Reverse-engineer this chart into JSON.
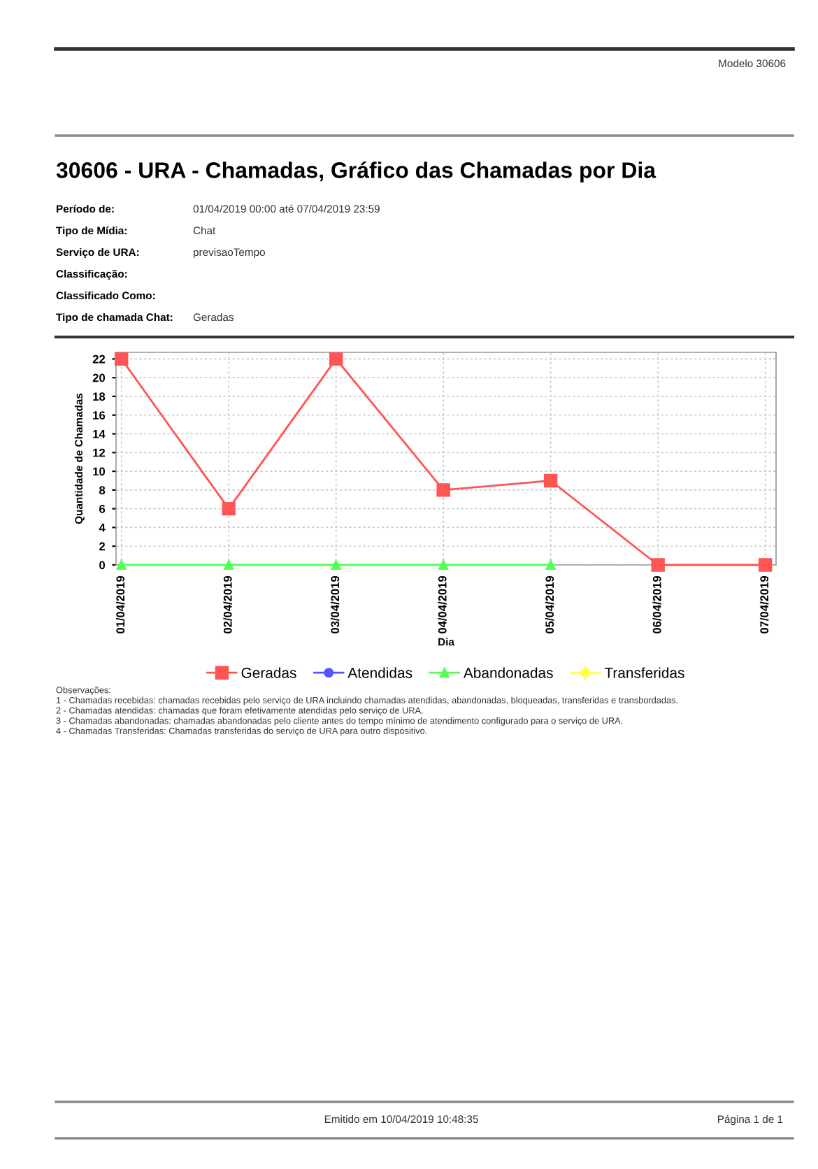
{
  "chart_data": {
    "type": "line",
    "title": "30606 - URA - Chamadas, Gráfico das Chamadas por Dia",
    "xlabel": "Dia",
    "ylabel": "Quantidade de Chamadas",
    "categories": [
      "01/04/2019",
      "02/04/2019",
      "03/04/2019",
      "04/04/2019",
      "05/04/2019",
      "06/04/2019",
      "07/04/2019"
    ],
    "series": [
      {
        "name": "Geradas",
        "color": "#ff5555",
        "marker": "square",
        "values": [
          22,
          6,
          22,
          8,
          9,
          0,
          0
        ]
      },
      {
        "name": "Atendidas",
        "color": "#5555ff",
        "marker": "circle",
        "values": [
          null,
          null,
          null,
          null,
          null,
          null,
          null
        ]
      },
      {
        "name": "Abandonadas",
        "color": "#55ff55",
        "marker": "triangle",
        "values": [
          0,
          0,
          0,
          0,
          0,
          null,
          null
        ]
      },
      {
        "name": "Transferidas",
        "color": "#ffff55",
        "marker": "diamond",
        "values": [
          null,
          null,
          null,
          null,
          null,
          null,
          null
        ]
      }
    ],
    "ylim": [
      0,
      22.7
    ],
    "yticks": [
      0,
      2,
      4,
      6,
      8,
      10,
      12,
      14,
      16,
      18,
      20,
      22
    ],
    "grid": true,
    "legend": "bottom",
    "line_style": "solid",
    "annotations": [
      "Modelo 30606",
      "Período de:",
      "01/04/2019 00:00 até 07/04/2019 23:59",
      "Tipo de Mídia:",
      "Chat",
      "Serviço de URA:",
      "previsaoTempo",
      "Classificação:",
      "Classificado Como:",
      "Tipo de chamada Chat:",
      "Geradas",
      "Observações:",
      "1 - Chamadas recebidas: chamadas recebidas pelo serviço de URA incluindo chamadas atendidas, abandonadas, bloqueadas, transferidas e transbordadas.",
      "2 - Chamadas atendidas: chamadas que foram efetivamente atendidas pelo serviço de URA.",
      "3 - Chamadas abandonadas: chamadas abandonadas pelo cliente antes do tempo mínimo de atendimento configurado para o serviço de URA.",
      "4 - Chamadas Transferidas: Chamadas transferidas do serviço de URA para outro dispositivo.",
      "Emitido em 10/04/2019 10:48:35",
      "Página 1 de 1"
    ]
  }
}
